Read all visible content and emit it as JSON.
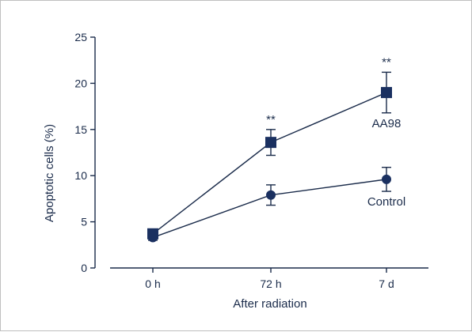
{
  "chart_data": {
    "type": "line",
    "categories": [
      "0 h",
      "72 h",
      "7 d"
    ],
    "xlabel": "After radiation",
    "ylabel": "Apoptotic cells (%)",
    "ylim": [
      0,
      25
    ],
    "yticks": [
      0,
      5,
      10,
      15,
      20,
      25
    ],
    "grid": false,
    "series": [
      {
        "name": "AA98",
        "marker": "square",
        "values": [
          3.7,
          13.6,
          19.0
        ],
        "errors": [
          0.3,
          1.4,
          2.2
        ],
        "significance": [
          "",
          "**",
          "**"
        ]
      },
      {
        "name": "Control",
        "marker": "circle",
        "values": [
          3.3,
          7.9,
          9.6
        ],
        "errors": [
          0.3,
          1.1,
          1.3
        ],
        "significance": [
          "",
          "",
          ""
        ]
      }
    ],
    "colors": {
      "series": "#1a3060",
      "axis": "#1a2b4a"
    }
  }
}
